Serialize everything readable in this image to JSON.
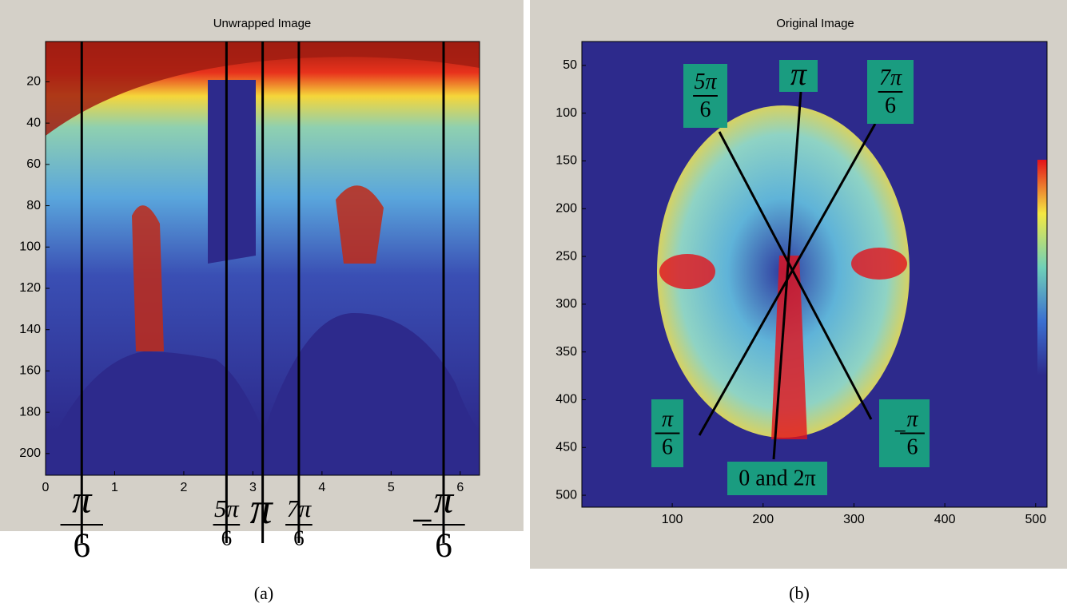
{
  "panels": [
    {
      "type": "image",
      "title": "Unwrapped Image",
      "xlim": [
        0,
        6.28
      ],
      "ylim": [
        0.5,
        210.5
      ],
      "xticks": [
        0,
        1,
        2,
        3,
        4,
        5,
        6
      ],
      "yticks": [
        20,
        40,
        60,
        80,
        100,
        120,
        140,
        160,
        180,
        200
      ],
      "markers": [
        {
          "x": 0.5236,
          "numerator": "π",
          "denominator": "6"
        },
        {
          "x": 2.618,
          "numerator": "5π",
          "denominator": "6"
        },
        {
          "x": 3.1416,
          "label": "π"
        },
        {
          "x": 3.6652,
          "numerator": "7π",
          "denominator": "6"
        },
        {
          "x": 5.7596,
          "sign": "−",
          "numerator": "π",
          "denominator": "6"
        }
      ],
      "caption": "(a)"
    },
    {
      "type": "image",
      "title": "Original Image",
      "xlim": [
        0.5,
        512.5
      ],
      "ylim": [
        25,
        512.5
      ],
      "xticks": [
        100,
        200,
        300,
        400,
        500
      ],
      "yticks": [
        50,
        100,
        150,
        200,
        250,
        300,
        350,
        400,
        450,
        500
      ],
      "labels": [
        {
          "numerator": "5π",
          "denominator": "6"
        },
        {
          "text": "π"
        },
        {
          "numerator": "7π",
          "denominator": "6"
        },
        {
          "numerator": "π",
          "denominator": "6"
        },
        {
          "sign": "−",
          "numerator": "π",
          "denominator": "6"
        },
        {
          "text": "0 and 2π"
        }
      ],
      "caption": "(b)"
    }
  ]
}
